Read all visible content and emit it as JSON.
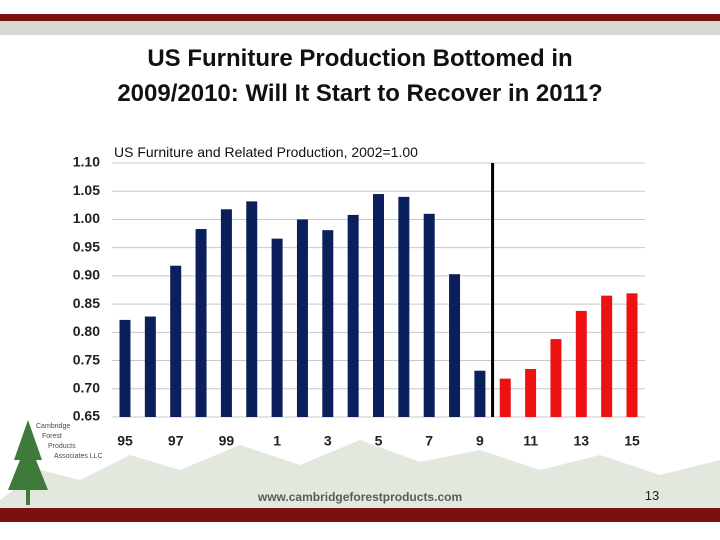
{
  "chart_data": {
    "type": "bar",
    "title": "US Furniture Production Bottomed in 2009/2010: Will It Start to Recover in 2011?",
    "subtitle": "US Furniture and Related Production, 2002=1.00",
    "categories": [
      "95",
      null,
      "97",
      null,
      "99",
      null,
      "1",
      null,
      "3",
      null,
      "5",
      null,
      "7",
      null,
      "9",
      null,
      "11",
      null,
      "13",
      null,
      "15"
    ],
    "values": [
      0.822,
      0.828,
      0.918,
      0.983,
      1.018,
      1.032,
      0.966,
      1.0,
      0.981,
      1.008,
      1.045,
      1.04,
      1.01,
      0.903,
      0.732,
      0.718,
      0.735,
      0.788,
      0.838,
      0.865,
      0.869
    ],
    "colors": [
      "#0b1f5c",
      "#0b1f5c",
      "#0b1f5c",
      "#0b1f5c",
      "#0b1f5c",
      "#0b1f5c",
      "#0b1f5c",
      "#0b1f5c",
      "#0b1f5c",
      "#0b1f5c",
      "#0b1f5c",
      "#0b1f5c",
      "#0b1f5c",
      "#0b1f5c",
      "#0b1f5c",
      "#ee1111",
      "#ee1111",
      "#ee1111",
      "#ee1111",
      "#ee1111",
      "#ee1111"
    ],
    "ylim": [
      0.65,
      1.1
    ],
    "yticks": [
      0.65,
      {
        "value": 0.7,
        "label": "0.70"
      },
      0.75,
      {
        "value": 0.8,
        "label": "0.80"
      },
      0.85,
      {
        "value": 0.9,
        "label": "0.90"
      },
      0.95,
      {
        "value": 1.0,
        "label": "1.00"
      },
      1.05,
      {
        "value": 1.1,
        "label": "1.10"
      }
    ],
    "grid": true
  },
  "footer": {
    "url": "www.cambridgeforestproducts.com",
    "page_number": "13",
    "logo": [
      "Cambridge",
      "Forest",
      "Products",
      "Associates LLC"
    ]
  }
}
